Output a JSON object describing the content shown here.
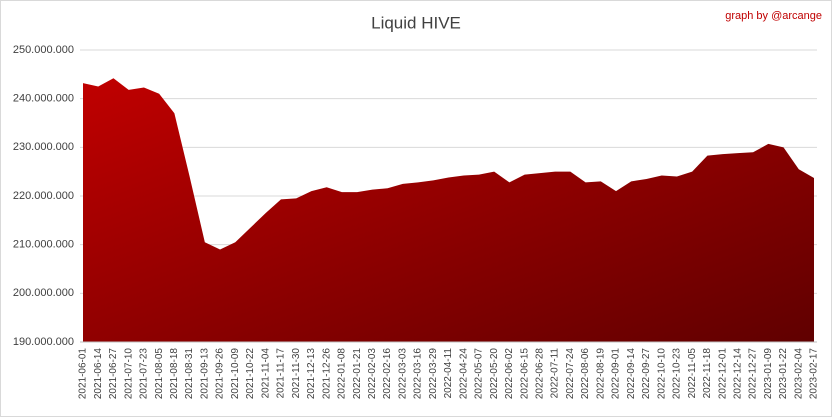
{
  "chart_data": {
    "type": "area",
    "title": "Liquid HIVE",
    "credit": "graph by @arcange",
    "color": "#c00000",
    "grid": true,
    "x": [
      "2021-06-01",
      "2021-06-14",
      "2021-06-27",
      "2021-07-10",
      "2021-07-23",
      "2021-08-05",
      "2021-08-18",
      "2021-08-31",
      "2021-09-13",
      "2021-09-26",
      "2021-10-09",
      "2021-10-22",
      "2021-11-04",
      "2021-11-17",
      "2021-11-30",
      "2021-12-13",
      "2021-12-26",
      "2022-01-08",
      "2022-01-21",
      "2022-02-03",
      "2022-02-16",
      "2022-03-03",
      "2022-03-16",
      "2022-03-29",
      "2022-04-11",
      "2022-04-24",
      "2022-05-07",
      "2022-05-20",
      "2022-06-02",
      "2022-06-15",
      "2022-06-28",
      "2022-07-11",
      "2022-07-24",
      "2022-08-06",
      "2022-08-19",
      "2022-09-01",
      "2022-09-14",
      "2022-09-27",
      "2022-10-10",
      "2022-10-23",
      "2022-11-05",
      "2022-11-18",
      "2022-12-01",
      "2022-12-14",
      "2022-12-27",
      "2023-01-09",
      "2023-01-22",
      "2023-02-04",
      "2023-02-17"
    ],
    "values": [
      243200000,
      242500000,
      244200000,
      241800000,
      242300000,
      241000000,
      237000000,
      224000000,
      210500000,
      209000000,
      210500000,
      213500000,
      216500000,
      219300000,
      219500000,
      221000000,
      221800000,
      220800000,
      220800000,
      221300000,
      221600000,
      222500000,
      222800000,
      223200000,
      223800000,
      224200000,
      224400000,
      225000000,
      222800000,
      224400000,
      224700000,
      225000000,
      225000000,
      222800000,
      223000000,
      221000000,
      223000000,
      223500000,
      224200000,
      224000000,
      225000000,
      228300000,
      228600000,
      228800000,
      229000000,
      230700000,
      230000000,
      225500000,
      223700000
    ],
    "ylim": [
      190000000,
      250000000
    ],
    "yticks": [
      {
        "value": 190000000,
        "label": "190.000.000"
      },
      {
        "value": 200000000,
        "label": "200.000.000"
      },
      {
        "value": 210000000,
        "label": "210.000.000"
      },
      {
        "value": 220000000,
        "label": "220.000.000"
      },
      {
        "value": 230000000,
        "label": "230.000.000"
      },
      {
        "value": 240000000,
        "label": "240.000.000"
      },
      {
        "value": 250000000,
        "label": "250.000.000"
      }
    ]
  }
}
